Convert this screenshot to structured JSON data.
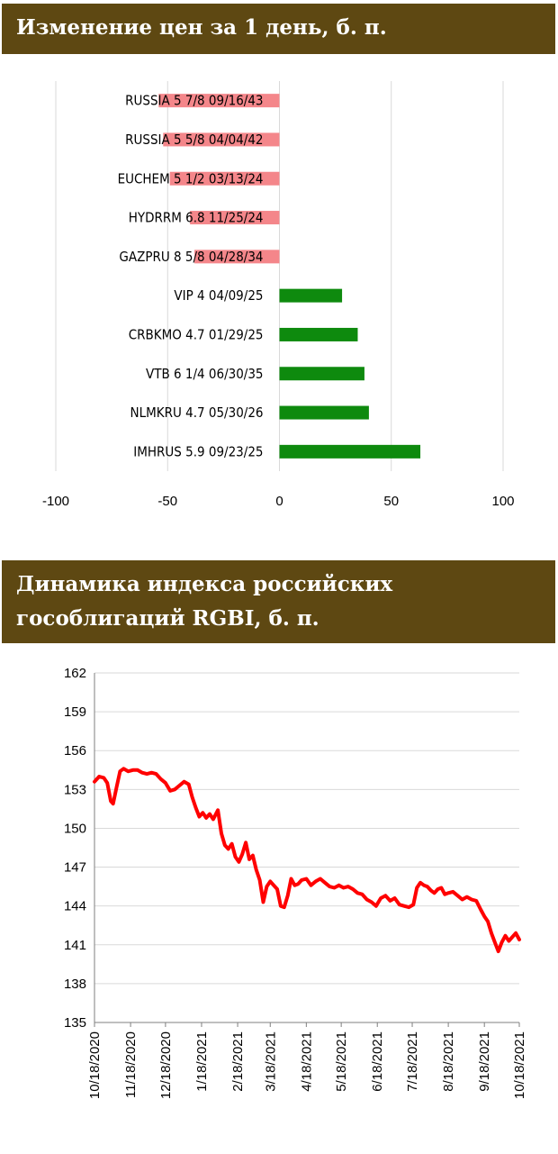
{
  "panels": {
    "price_change_title": "Изменение цен за 1 день, б. п.",
    "rgbi_title": "Динамика индекса российских гособлигаций RGBI, б. п."
  },
  "colors": {
    "header_bg": "#5e4812",
    "negative_bar": "#f4868a",
    "positive_bar": "#0e8a0e",
    "line": "#ff0000"
  },
  "chart_data": [
    {
      "type": "bar",
      "orientation": "horizontal",
      "title": "Изменение цен за 1 день, б. п.",
      "categories": [
        "RUSSIA 5 7/8 09/16/43",
        "RUSSIA 5 5/8 04/04/42",
        "EUCHEM 5 1/2 03/13/24",
        "HYDRRM 6.8 11/25/24",
        "GAZPRU 8 5/8 04/28/34",
        "VIP 4 04/09/25",
        "CRBKMO 4.7 01/29/25",
        "VTB 6 1/4 06/30/35",
        "NLMKRU 4.7 05/30/26",
        "IMHRUS 5.9 09/23/25"
      ],
      "values": [
        -54,
        -52,
        -49,
        -40,
        -38,
        28,
        35,
        38,
        40,
        63
      ],
      "xlim": [
        -100,
        100
      ],
      "xticks": [
        "-100",
        "-50",
        "0",
        "50",
        "100"
      ],
      "grid": true
    },
    {
      "type": "line",
      "title": "Динамика индекса российских гособлигаций RGBI, б. п.",
      "ylim": [
        135,
        162
      ],
      "yticks": [
        "162",
        "159",
        "156",
        "153",
        "150",
        "147",
        "144",
        "141",
        "138",
        "135"
      ],
      "xticks": [
        "10/18/2020",
        "11/18/2020",
        "12/18/2020",
        "1/18/2021",
        "2/18/2021",
        "3/18/2021",
        "4/18/2021",
        "5/18/2021",
        "6/18/2021",
        "7/18/2021",
        "8/18/2021",
        "9/18/2021",
        "10/18/2021"
      ],
      "grid": true,
      "series": [
        {
          "x": [
            "2020-10-18",
            "2020-10-22",
            "2020-10-26",
            "2020-10-29",
            "2020-11-01",
            "2020-11-03",
            "2020-11-06",
            "2020-11-09",
            "2020-11-12",
            "2020-11-16",
            "2020-11-20",
            "2020-11-24",
            "2020-11-28",
            "2020-12-02",
            "2020-12-06",
            "2020-12-10",
            "2020-12-14",
            "2020-12-18",
            "2020-12-22",
            "2020-12-26",
            "2020-12-30",
            "2021-01-03",
            "2021-01-07",
            "2021-01-10",
            "2021-01-13",
            "2021-01-16",
            "2021-01-19",
            "2021-01-22",
            "2021-01-25",
            "2021-01-28",
            "2021-02-01",
            "2021-02-04",
            "2021-02-07",
            "2021-02-10",
            "2021-02-13",
            "2021-02-16",
            "2021-02-19",
            "2021-02-22",
            "2021-02-25",
            "2021-02-28",
            "2021-03-03",
            "2021-03-06",
            "2021-03-09",
            "2021-03-12",
            "2021-03-15",
            "2021-03-18",
            "2021-03-21",
            "2021-03-24",
            "2021-03-27",
            "2021-03-30",
            "2021-04-02",
            "2021-04-05",
            "2021-04-08",
            "2021-04-11",
            "2021-04-14",
            "2021-04-18",
            "2021-04-22",
            "2021-04-26",
            "2021-04-30",
            "2021-05-04",
            "2021-05-08",
            "2021-05-12",
            "2021-05-16",
            "2021-05-20",
            "2021-05-24",
            "2021-05-28",
            "2021-06-01",
            "2021-06-05",
            "2021-06-09",
            "2021-06-13",
            "2021-06-17",
            "2021-06-21",
            "2021-06-25",
            "2021-06-29",
            "2021-07-03",
            "2021-07-07",
            "2021-07-11",
            "2021-07-15",
            "2021-07-19",
            "2021-07-22",
            "2021-07-25",
            "2021-07-28",
            "2021-07-31",
            "2021-08-03",
            "2021-08-06",
            "2021-08-09",
            "2021-08-12",
            "2021-08-15",
            "2021-08-18",
            "2021-08-22",
            "2021-08-26",
            "2021-08-30",
            "2021-09-03",
            "2021-09-07",
            "2021-09-11",
            "2021-09-15",
            "2021-09-18",
            "2021-09-21",
            "2021-09-24",
            "2021-09-27",
            "2021-09-30",
            "2021-10-03",
            "2021-10-06",
            "2021-10-09",
            "2021-10-12",
            "2021-10-15",
            "2021-10-18"
          ],
          "y": [
            153.6,
            154.0,
            153.9,
            153.5,
            152.1,
            151.9,
            153.2,
            154.4,
            154.6,
            154.4,
            154.5,
            154.5,
            154.3,
            154.2,
            154.3,
            154.2,
            153.8,
            153.5,
            152.9,
            153.0,
            153.3,
            153.6,
            153.4,
            152.4,
            151.6,
            150.9,
            151.2,
            150.8,
            151.1,
            150.7,
            151.4,
            149.6,
            148.7,
            148.4,
            148.8,
            147.8,
            147.4,
            148.0,
            148.9,
            147.6,
            147.9,
            146.8,
            146.0,
            144.3,
            145.5,
            145.9,
            145.6,
            145.3,
            144.0,
            143.9,
            144.8,
            146.1,
            145.6,
            145.7,
            146.0,
            146.1,
            145.6,
            145.9,
            146.1,
            145.8,
            145.5,
            145.4,
            145.6,
            145.4,
            145.5,
            145.3,
            145.0,
            144.9,
            144.5,
            144.3,
            144.0,
            144.6,
            144.8,
            144.4,
            144.6,
            144.1,
            144.0,
            143.9,
            144.1,
            145.4,
            145.8,
            145.6,
            145.5,
            145.2,
            145.0,
            145.3,
            145.4,
            144.9,
            145.0,
            145.1,
            144.8,
            144.5,
            144.7,
            144.5,
            144.4,
            143.7,
            143.2,
            142.8,
            141.9,
            141.2,
            140.5,
            141.2,
            141.7,
            141.3,
            141.6,
            141.9,
            141.4
          ]
        }
      ]
    }
  ]
}
